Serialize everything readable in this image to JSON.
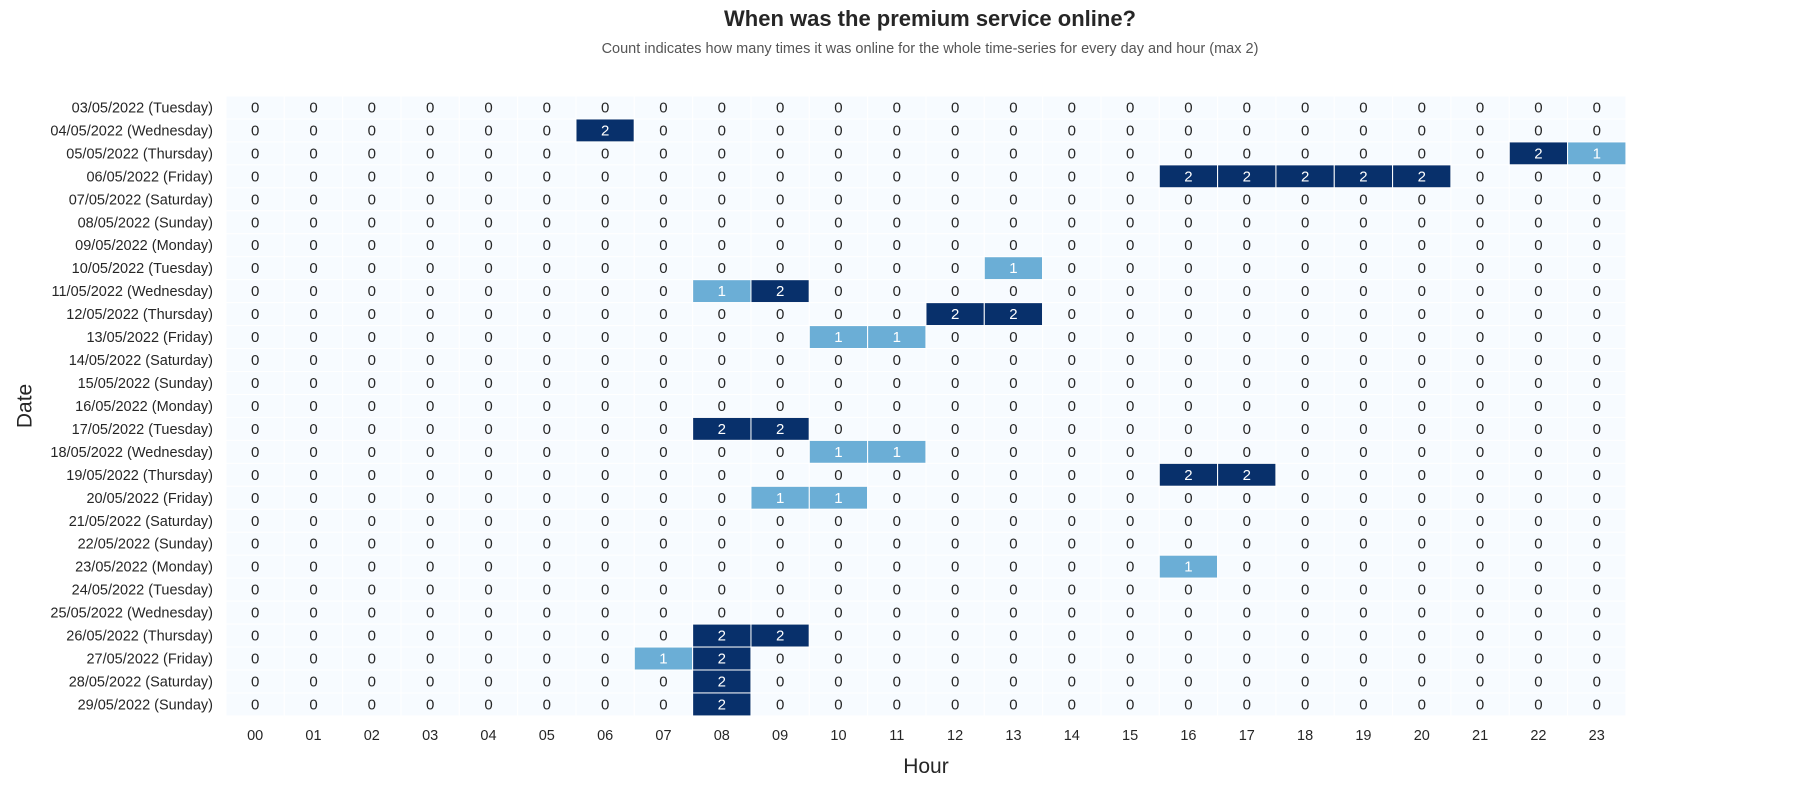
{
  "chart_data": {
    "type": "heatmap",
    "title": "When was the premium service online?",
    "subtitle": "Count indicates how many times it was online for the whole time-series for every day and hour (max 2)",
    "xlabel": "Hour",
    "ylabel": "Date",
    "x": [
      "00",
      "01",
      "02",
      "03",
      "04",
      "05",
      "06",
      "07",
      "08",
      "09",
      "10",
      "11",
      "12",
      "13",
      "14",
      "15",
      "16",
      "17",
      "18",
      "19",
      "20",
      "21",
      "22",
      "23"
    ],
    "y": [
      "03/05/2022 (Tuesday)",
      "04/05/2022 (Wednesday)",
      "05/05/2022 (Thursday)",
      "06/05/2022 (Friday)",
      "07/05/2022 (Saturday)",
      "08/05/2022 (Sunday)",
      "09/05/2022 (Monday)",
      "10/05/2022 (Tuesday)",
      "11/05/2022 (Wednesday)",
      "12/05/2022 (Thursday)",
      "13/05/2022 (Friday)",
      "14/05/2022 (Saturday)",
      "15/05/2022 (Sunday)",
      "16/05/2022 (Monday)",
      "17/05/2022 (Tuesday)",
      "18/05/2022 (Wednesday)",
      "19/05/2022 (Thursday)",
      "20/05/2022 (Friday)",
      "21/05/2022 (Saturday)",
      "22/05/2022 (Sunday)",
      "23/05/2022 (Monday)",
      "24/05/2022 (Tuesday)",
      "25/05/2022 (Wednesday)",
      "26/05/2022 (Thursday)",
      "27/05/2022 (Friday)",
      "28/05/2022 (Saturday)",
      "29/05/2022 (Sunday)"
    ],
    "values": [
      [
        0,
        0,
        0,
        0,
        0,
        0,
        0,
        0,
        0,
        0,
        0,
        0,
        0,
        0,
        0,
        0,
        0,
        0,
        0,
        0,
        0,
        0,
        0,
        0
      ],
      [
        0,
        0,
        0,
        0,
        0,
        0,
        2,
        0,
        0,
        0,
        0,
        0,
        0,
        0,
        0,
        0,
        0,
        0,
        0,
        0,
        0,
        0,
        0,
        0
      ],
      [
        0,
        0,
        0,
        0,
        0,
        0,
        0,
        0,
        0,
        0,
        0,
        0,
        0,
        0,
        0,
        0,
        0,
        0,
        0,
        0,
        0,
        0,
        2,
        1
      ],
      [
        0,
        0,
        0,
        0,
        0,
        0,
        0,
        0,
        0,
        0,
        0,
        0,
        0,
        0,
        0,
        0,
        2,
        2,
        2,
        2,
        2,
        0,
        0,
        0
      ],
      [
        0,
        0,
        0,
        0,
        0,
        0,
        0,
        0,
        0,
        0,
        0,
        0,
        0,
        0,
        0,
        0,
        0,
        0,
        0,
        0,
        0,
        0,
        0,
        0
      ],
      [
        0,
        0,
        0,
        0,
        0,
        0,
        0,
        0,
        0,
        0,
        0,
        0,
        0,
        0,
        0,
        0,
        0,
        0,
        0,
        0,
        0,
        0,
        0,
        0
      ],
      [
        0,
        0,
        0,
        0,
        0,
        0,
        0,
        0,
        0,
        0,
        0,
        0,
        0,
        0,
        0,
        0,
        0,
        0,
        0,
        0,
        0,
        0,
        0,
        0
      ],
      [
        0,
        0,
        0,
        0,
        0,
        0,
        0,
        0,
        0,
        0,
        0,
        0,
        0,
        1,
        0,
        0,
        0,
        0,
        0,
        0,
        0,
        0,
        0,
        0
      ],
      [
        0,
        0,
        0,
        0,
        0,
        0,
        0,
        0,
        1,
        2,
        0,
        0,
        0,
        0,
        0,
        0,
        0,
        0,
        0,
        0,
        0,
        0,
        0,
        0
      ],
      [
        0,
        0,
        0,
        0,
        0,
        0,
        0,
        0,
        0,
        0,
        0,
        0,
        2,
        2,
        0,
        0,
        0,
        0,
        0,
        0,
        0,
        0,
        0,
        0
      ],
      [
        0,
        0,
        0,
        0,
        0,
        0,
        0,
        0,
        0,
        0,
        1,
        1,
        0,
        0,
        0,
        0,
        0,
        0,
        0,
        0,
        0,
        0,
        0,
        0
      ],
      [
        0,
        0,
        0,
        0,
        0,
        0,
        0,
        0,
        0,
        0,
        0,
        0,
        0,
        0,
        0,
        0,
        0,
        0,
        0,
        0,
        0,
        0,
        0,
        0
      ],
      [
        0,
        0,
        0,
        0,
        0,
        0,
        0,
        0,
        0,
        0,
        0,
        0,
        0,
        0,
        0,
        0,
        0,
        0,
        0,
        0,
        0,
        0,
        0,
        0
      ],
      [
        0,
        0,
        0,
        0,
        0,
        0,
        0,
        0,
        0,
        0,
        0,
        0,
        0,
        0,
        0,
        0,
        0,
        0,
        0,
        0,
        0,
        0,
        0,
        0
      ],
      [
        0,
        0,
        0,
        0,
        0,
        0,
        0,
        0,
        2,
        2,
        0,
        0,
        0,
        0,
        0,
        0,
        0,
        0,
        0,
        0,
        0,
        0,
        0,
        0
      ],
      [
        0,
        0,
        0,
        0,
        0,
        0,
        0,
        0,
        0,
        0,
        1,
        1,
        0,
        0,
        0,
        0,
        0,
        0,
        0,
        0,
        0,
        0,
        0,
        0
      ],
      [
        0,
        0,
        0,
        0,
        0,
        0,
        0,
        0,
        0,
        0,
        0,
        0,
        0,
        0,
        0,
        0,
        2,
        2,
        0,
        0,
        0,
        0,
        0,
        0
      ],
      [
        0,
        0,
        0,
        0,
        0,
        0,
        0,
        0,
        0,
        1,
        1,
        0,
        0,
        0,
        0,
        0,
        0,
        0,
        0,
        0,
        0,
        0,
        0,
        0
      ],
      [
        0,
        0,
        0,
        0,
        0,
        0,
        0,
        0,
        0,
        0,
        0,
        0,
        0,
        0,
        0,
        0,
        0,
        0,
        0,
        0,
        0,
        0,
        0,
        0
      ],
      [
        0,
        0,
        0,
        0,
        0,
        0,
        0,
        0,
        0,
        0,
        0,
        0,
        0,
        0,
        0,
        0,
        0,
        0,
        0,
        0,
        0,
        0,
        0,
        0
      ],
      [
        0,
        0,
        0,
        0,
        0,
        0,
        0,
        0,
        0,
        0,
        0,
        0,
        0,
        0,
        0,
        0,
        1,
        0,
        0,
        0,
        0,
        0,
        0,
        0
      ],
      [
        0,
        0,
        0,
        0,
        0,
        0,
        0,
        0,
        0,
        0,
        0,
        0,
        0,
        0,
        0,
        0,
        0,
        0,
        0,
        0,
        0,
        0,
        0,
        0
      ],
      [
        0,
        0,
        0,
        0,
        0,
        0,
        0,
        0,
        0,
        0,
        0,
        0,
        0,
        0,
        0,
        0,
        0,
        0,
        0,
        0,
        0,
        0,
        0,
        0
      ],
      [
        0,
        0,
        0,
        0,
        0,
        0,
        0,
        0,
        2,
        2,
        0,
        0,
        0,
        0,
        0,
        0,
        0,
        0,
        0,
        0,
        0,
        0,
        0,
        0
      ],
      [
        0,
        0,
        0,
        0,
        0,
        0,
        0,
        1,
        2,
        0,
        0,
        0,
        0,
        0,
        0,
        0,
        0,
        0,
        0,
        0,
        0,
        0,
        0,
        0
      ],
      [
        0,
        0,
        0,
        0,
        0,
        0,
        0,
        0,
        2,
        0,
        0,
        0,
        0,
        0,
        0,
        0,
        0,
        0,
        0,
        0,
        0,
        0,
        0,
        0
      ],
      [
        0,
        0,
        0,
        0,
        0,
        0,
        0,
        0,
        2,
        0,
        0,
        0,
        0,
        0,
        0,
        0,
        0,
        0,
        0,
        0,
        0,
        0,
        0,
        0
      ]
    ],
    "vmin": 0,
    "vmax": 2,
    "colors": {
      "0": "#f7fbff",
      "1": "#6baed6",
      "2": "#08306b",
      "text_dark": "#262626",
      "text_light": "#ffffff",
      "cell_border": "#ffffff"
    },
    "grid": false,
    "legend": "none"
  }
}
